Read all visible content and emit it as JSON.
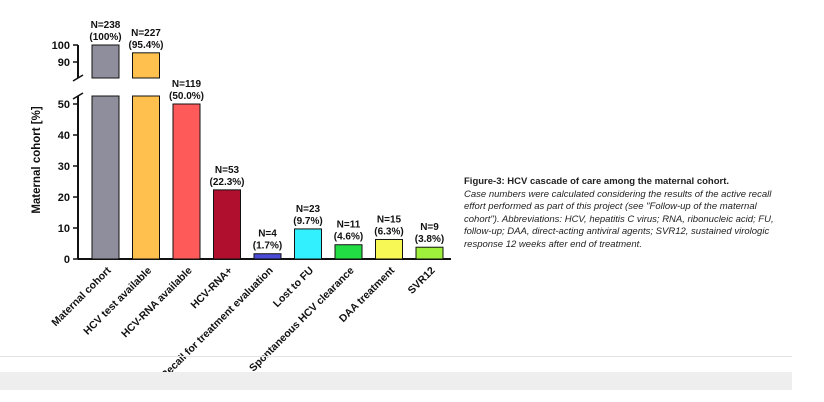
{
  "chart_data": {
    "type": "bar",
    "ylabel": "Maternal cohort [%]",
    "categories": [
      "Maternal cohort",
      "HCV test available",
      "HCV-RNA available",
      "HCV-RNA+",
      "Recall for treatment evaluation",
      "Lost to FU",
      "Spontaneous HCV clearance",
      "DAA treatment",
      "SVR12"
    ],
    "values": [
      100,
      95.4,
      50.0,
      22.3,
      1.7,
      9.7,
      4.6,
      6.3,
      3.8
    ],
    "counts": [
      "N=238",
      "N=227",
      "N=119",
      "N=53",
      "N=4",
      "N=23",
      "N=11",
      "N=15",
      "N=9"
    ],
    "percent_labels": [
      "(100%)",
      "(95.4%)",
      "(50.0%)",
      "(22.3%)",
      "(1.7%)",
      "(9.7%)",
      "(4.6%)",
      "(6.3%)",
      "(3.8%)"
    ],
    "colors": [
      "#8e8e9c",
      "#ffc04d",
      "#ff5a5a",
      "#b0102e",
      "#4b4bd6",
      "#33f0ff",
      "#22dd44",
      "#f7f755",
      "#9ef03c"
    ],
    "axis_break": [
      53,
      87
    ],
    "ylim": [
      0,
      100
    ],
    "yticks_lower": [
      0,
      10,
      20,
      30,
      40,
      50
    ],
    "yticks_upper": [
      90,
      100
    ],
    "grid": false
  },
  "caption": {
    "title": "Figure-3: HCV cascade of care among the maternal cohort.",
    "body": "Case numbers were calculated considering the results of the active recall effort performed as part of this project (see \"Follow-up of the maternal cohort\"). Abbreviations: HCV, hepatitis C virus; RNA, ribonucleic acid; FU, follow-up; DAA, direct-acting antiviral agents; SVR12, sustained virologic response 12 weeks after end of treatment."
  }
}
